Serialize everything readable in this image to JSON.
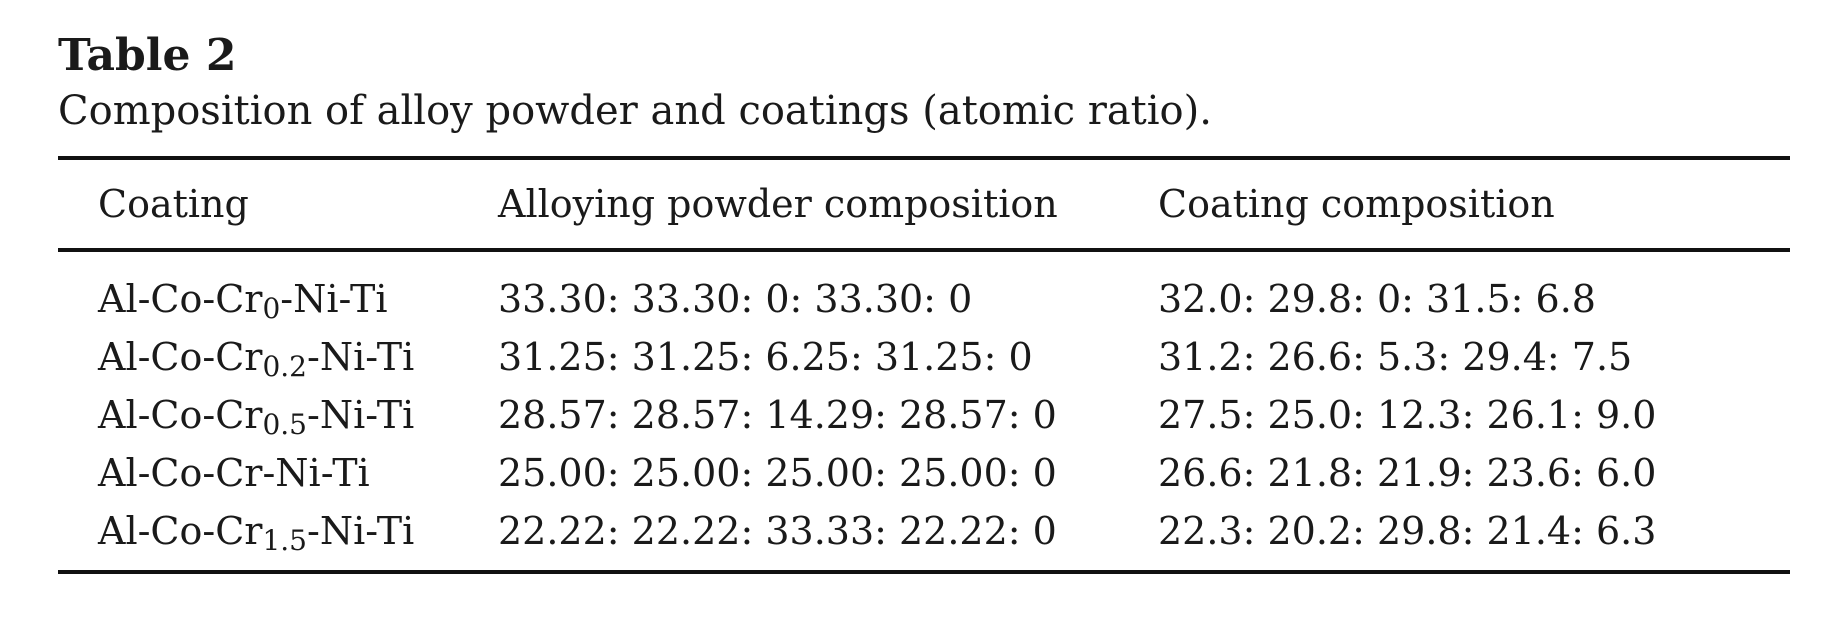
{
  "table": {
    "label": "Table 2",
    "caption": "Composition of alloy powder and coatings (atomic ratio).",
    "headers": [
      "Coating",
      "Alloying powder composition",
      "Coating composition"
    ],
    "rows": [
      {
        "coating_prefix": "Al-Co-Cr",
        "coating_sub": "0",
        "coating_suffix": "-Ni-Ti",
        "powder": "33.30: 33.30: 0: 33.30: 0",
        "composition": "32.0: 29.8: 0: 31.5: 6.8"
      },
      {
        "coating_prefix": "Al-Co-Cr",
        "coating_sub": "0.2",
        "coating_suffix": "-Ni-Ti",
        "powder": "31.25: 31.25: 6.25: 31.25: 0",
        "composition": "31.2: 26.6: 5.3: 29.4: 7.5"
      },
      {
        "coating_prefix": "Al-Co-Cr",
        "coating_sub": "0.5",
        "coating_suffix": "-Ni-Ti",
        "powder": "28.57: 28.57: 14.29: 28.57: 0",
        "composition": "27.5: 25.0: 12.3: 26.1: 9.0"
      },
      {
        "coating_prefix": "Al-Co-Cr",
        "coating_sub": "",
        "coating_suffix": "-Ni-Ti",
        "powder": "25.00: 25.00: 25.00: 25.00: 0",
        "composition": "26.6: 21.8: 21.9: 23.6: 6.0"
      },
      {
        "coating_prefix": "Al-Co-Cr",
        "coating_sub": "1.5",
        "coating_suffix": "-Ni-Ti",
        "powder": "22.22: 22.22: 33.33: 22.22: 0",
        "composition": "22.3: 20.2: 29.8: 21.4: 6.3"
      }
    ]
  }
}
